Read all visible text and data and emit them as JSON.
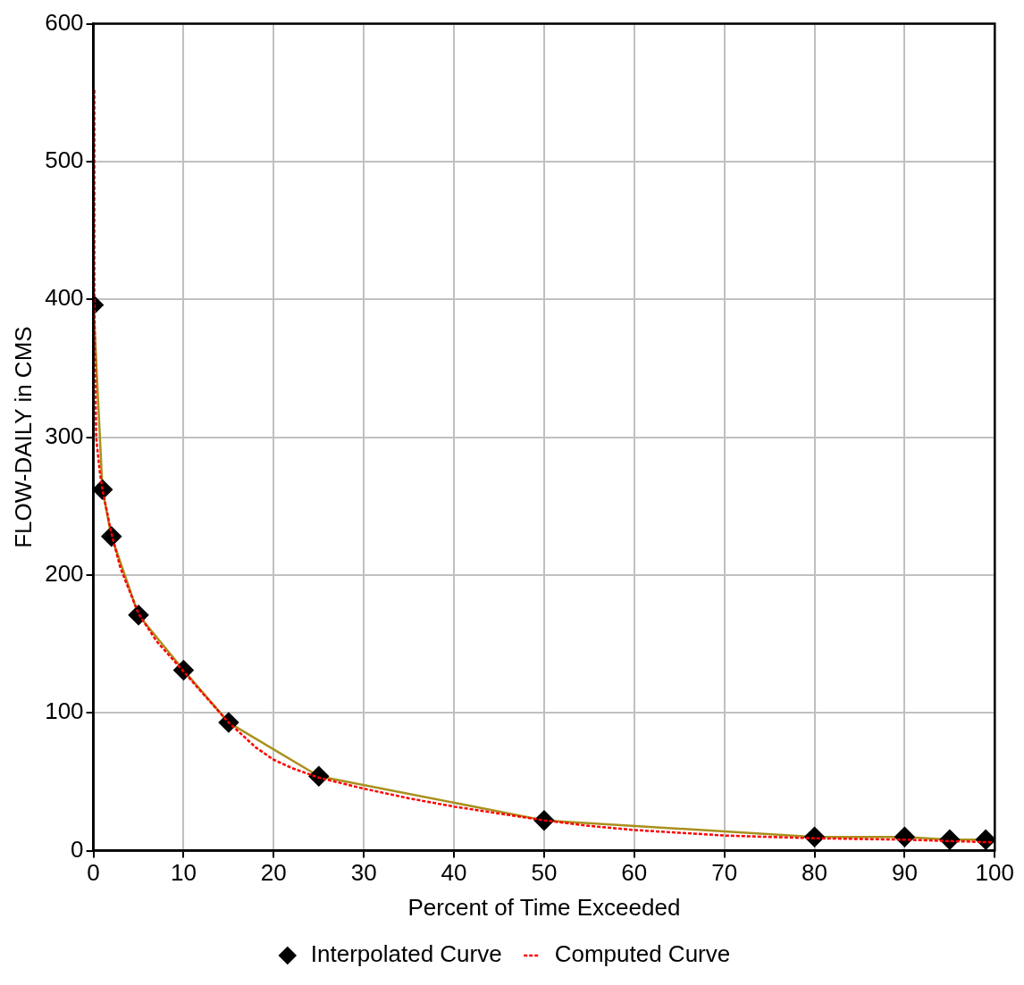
{
  "chart_data": {
    "type": "line",
    "xlabel": "Percent of Time Exceeded",
    "ylabel": "FLOW-DAILY in CMS",
    "xlim": [
      0,
      100
    ],
    "xticks": [
      0,
      10,
      20,
      30,
      40,
      50,
      60,
      70,
      80,
      90,
      100
    ],
    "ylim": [
      0,
      600
    ],
    "yticks": [
      0,
      100,
      200,
      300,
      400,
      500,
      600
    ],
    "grid": true,
    "legend": "bottom",
    "series": [
      {
        "name": "Interpolated Curve",
        "color": "#a8901c",
        "marker": "diamond",
        "line_style": "solid",
        "x": [
          0,
          1,
          2,
          5,
          10,
          15,
          25,
          50,
          80,
          90,
          95,
          99
        ],
        "values": [
          396,
          262,
          228,
          171,
          131,
          93,
          54,
          22,
          10,
          10,
          8,
          8
        ]
      },
      {
        "name": "Computed Curve",
        "color": "#ff0000",
        "marker": "none",
        "line_style": "dashed",
        "x": [
          0.1,
          0.1,
          0.3,
          0.7,
          1,
          2,
          3,
          5,
          7,
          10,
          12,
          15,
          18,
          20,
          22,
          25,
          30,
          35,
          40,
          45,
          50,
          55,
          60,
          65,
          70,
          75,
          80,
          90,
          95,
          100
        ],
        "values": [
          552,
          400,
          300,
          275,
          262,
          230,
          205,
          172,
          152,
          130,
          115,
          93,
          75,
          66,
          60,
          53,
          45,
          38,
          32,
          27,
          22,
          18,
          15,
          13,
          11,
          10,
          9,
          8,
          7,
          6
        ]
      }
    ]
  }
}
